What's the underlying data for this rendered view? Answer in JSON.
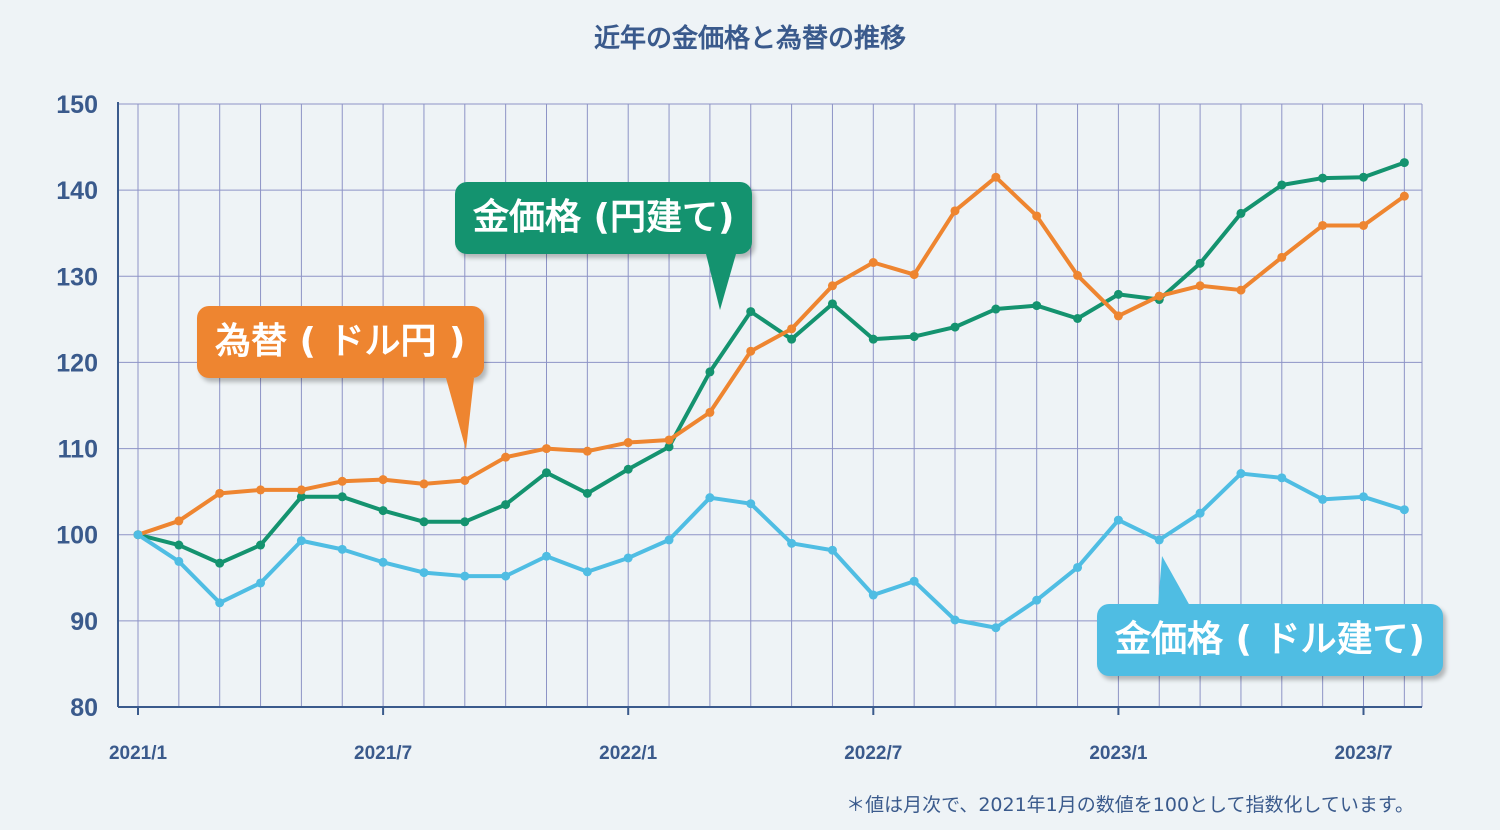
{
  "title": "近年の金価格と為替の推移",
  "footnote": "＊値は月次で、2021年1月の数値を100として指数化しています。",
  "callouts": {
    "gold_jpy": "金価格 (円建て)",
    "fx": "為替 ( ドル円 )",
    "gold_usd": "金価格 ( ドル建て)"
  },
  "colors": {
    "gold_jpy": "#14936f",
    "fx": "#ee8530",
    "gold_usd": "#4fbde3",
    "grid": "#8d93c6",
    "axis": "#3a5a8c",
    "background": "#eef3f6"
  },
  "chart_data": {
    "type": "line",
    "title": "近年の金価格と為替の推移",
    "x": [
      "2021/1",
      "2021/2",
      "2021/3",
      "2021/4",
      "2021/5",
      "2021/6",
      "2021/7",
      "2021/8",
      "2021/9",
      "2021/10",
      "2021/11",
      "2021/12",
      "2022/1",
      "2022/2",
      "2022/3",
      "2022/4",
      "2022/5",
      "2022/6",
      "2022/7",
      "2022/8",
      "2022/9",
      "2022/10",
      "2022/11",
      "2022/12",
      "2023/1",
      "2023/2",
      "2023/3",
      "2023/4",
      "2023/5",
      "2023/6",
      "2023/7",
      "2023/8"
    ],
    "x_tick_labels": [
      "2021/1",
      "2021/7",
      "2022/1",
      "2022/7",
      "2023/1",
      "2023/7"
    ],
    "y_ticks": [
      80,
      90,
      100,
      110,
      120,
      130,
      140,
      150
    ],
    "ylim": [
      80,
      150
    ],
    "grid": true,
    "series": [
      {
        "name": "金価格 (円建て)",
        "values": [
          100,
          98.8,
          96.7,
          98.8,
          104.4,
          104.4,
          102.8,
          101.5,
          101.5,
          103.5,
          107.2,
          104.8,
          107.6,
          110.2,
          118.9,
          125.9,
          122.7,
          126.8,
          122.7,
          123.0,
          124.1,
          126.2,
          126.6,
          125.1,
          127.9,
          127.3,
          131.5,
          137.3,
          140.6,
          141.4,
          141.5,
          143.2
        ]
      },
      {
        "name": "為替 ( ドル円 )",
        "values": [
          100,
          101.6,
          104.8,
          105.2,
          105.2,
          106.2,
          106.4,
          105.9,
          106.3,
          109.0,
          110.0,
          109.7,
          110.7,
          111.0,
          114.2,
          121.3,
          123.9,
          128.9,
          131.6,
          130.2,
          137.6,
          141.5,
          137.0,
          130.1,
          125.4,
          127.7,
          128.9,
          128.4,
          132.2,
          135.9,
          135.9,
          139.3
        ]
      },
      {
        "name": "金価格 ( ドル建て)",
        "values": [
          100,
          96.9,
          92.1,
          94.4,
          99.3,
          98.3,
          96.8,
          95.6,
          95.2,
          95.2,
          97.5,
          95.7,
          97.3,
          99.4,
          104.3,
          103.6,
          99.0,
          98.2,
          93.0,
          94.6,
          90.1,
          89.2,
          92.4,
          96.2,
          101.7,
          99.4,
          102.5,
          107.1,
          106.6,
          104.1,
          104.4,
          102.9
        ]
      }
    ]
  }
}
